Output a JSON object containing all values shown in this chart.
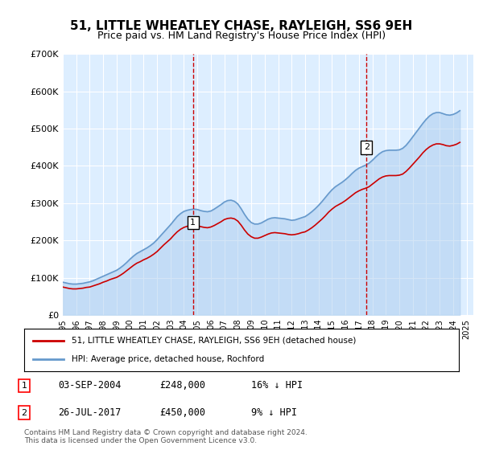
{
  "title": "51, LITTLE WHEATLEY CHASE, RAYLEIGH, SS6 9EH",
  "subtitle": "Price paid vs. HM Land Registry's House Price Index (HPI)",
  "title_fontsize": 11,
  "subtitle_fontsize": 9,
  "background_color": "#ffffff",
  "plot_bg_color": "#ddeeff",
  "grid_color": "#ffffff",
  "hpi_color": "#6699cc",
  "hpi_fill_color": "#aaccee",
  "price_color": "#cc0000",
  "ylim": [
    0,
    700000
  ],
  "yticks": [
    0,
    100000,
    200000,
    300000,
    400000,
    500000,
    600000,
    700000
  ],
  "ytick_labels": [
    "£0",
    "£100K",
    "£200K",
    "£300K",
    "£400K",
    "£500K",
    "£600K",
    "£700K"
  ],
  "xlim_start": 1995.0,
  "xlim_end": 2025.5,
  "xtick_years": [
    1995,
    1996,
    1997,
    1998,
    1999,
    2000,
    2001,
    2002,
    2003,
    2004,
    2005,
    2006,
    2007,
    2008,
    2009,
    2010,
    2011,
    2012,
    2013,
    2014,
    2015,
    2016,
    2017,
    2018,
    2019,
    2020,
    2021,
    2022,
    2023,
    2024,
    2025
  ],
  "sale1_x": 2004.67,
  "sale1_y": 248000,
  "sale1_label": "1",
  "sale2_x": 2017.56,
  "sale2_y": 450000,
  "sale2_label": "2",
  "legend_line1": "51, LITTLE WHEATLEY CHASE, RAYLEIGH, SS6 9EH (detached house)",
  "legend_line2": "HPI: Average price, detached house, Rochford",
  "table_rows": [
    {
      "num": "1",
      "date": "03-SEP-2004",
      "price": "£248,000",
      "hpi": "16% ↓ HPI"
    },
    {
      "num": "2",
      "date": "26-JUL-2017",
      "price": "£450,000",
      "hpi": "9% ↓ HPI"
    }
  ],
  "footnote": "Contains HM Land Registry data © Crown copyright and database right 2024.\nThis data is licensed under the Open Government Licence v3.0.",
  "hpi_years": [
    1995.0,
    1995.25,
    1995.5,
    1995.75,
    1996.0,
    1996.25,
    1996.5,
    1996.75,
    1997.0,
    1997.25,
    1997.5,
    1997.75,
    1998.0,
    1998.25,
    1998.5,
    1998.75,
    1999.0,
    1999.25,
    1999.5,
    1999.75,
    2000.0,
    2000.25,
    2000.5,
    2000.75,
    2001.0,
    2001.25,
    2001.5,
    2001.75,
    2002.0,
    2002.25,
    2002.5,
    2002.75,
    2003.0,
    2003.25,
    2003.5,
    2003.75,
    2004.0,
    2004.25,
    2004.5,
    2004.75,
    2005.0,
    2005.25,
    2005.5,
    2005.75,
    2006.0,
    2006.25,
    2006.5,
    2006.75,
    2007.0,
    2007.25,
    2007.5,
    2007.75,
    2008.0,
    2008.25,
    2008.5,
    2008.75,
    2009.0,
    2009.25,
    2009.5,
    2009.75,
    2010.0,
    2010.25,
    2010.5,
    2010.75,
    2011.0,
    2011.25,
    2011.5,
    2011.75,
    2012.0,
    2012.25,
    2012.5,
    2012.75,
    2013.0,
    2013.25,
    2013.5,
    2013.75,
    2014.0,
    2014.25,
    2014.5,
    2014.75,
    2015.0,
    2015.25,
    2015.5,
    2015.75,
    2016.0,
    2016.25,
    2016.5,
    2016.75,
    2017.0,
    2017.25,
    2017.5,
    2017.75,
    2018.0,
    2018.25,
    2018.5,
    2018.75,
    2019.0,
    2019.25,
    2019.5,
    2019.75,
    2020.0,
    2020.25,
    2020.5,
    2020.75,
    2021.0,
    2021.25,
    2021.5,
    2021.75,
    2022.0,
    2022.25,
    2022.5,
    2022.75,
    2023.0,
    2023.25,
    2023.5,
    2023.75,
    2024.0,
    2024.25,
    2024.5
  ],
  "hpi_values": [
    88000,
    86000,
    84000,
    83000,
    83000,
    84000,
    85000,
    87000,
    89000,
    92000,
    96000,
    100000,
    104000,
    108000,
    112000,
    116000,
    120000,
    126000,
    133000,
    141000,
    150000,
    158000,
    165000,
    170000,
    175000,
    180000,
    186000,
    193000,
    202000,
    212000,
    222000,
    232000,
    242000,
    253000,
    264000,
    272000,
    278000,
    281000,
    283000,
    284000,
    283000,
    280000,
    278000,
    277000,
    279000,
    284000,
    290000,
    296000,
    303000,
    307000,
    308000,
    305000,
    298000,
    285000,
    270000,
    257000,
    248000,
    244000,
    244000,
    247000,
    252000,
    257000,
    260000,
    261000,
    260000,
    259000,
    258000,
    256000,
    254000,
    255000,
    258000,
    261000,
    264000,
    270000,
    277000,
    285000,
    294000,
    304000,
    315000,
    326000,
    336000,
    344000,
    350000,
    356000,
    363000,
    371000,
    380000,
    388000,
    394000,
    398000,
    402000,
    407000,
    415000,
    424000,
    432000,
    438000,
    441000,
    442000,
    442000,
    442000,
    443000,
    447000,
    455000,
    466000,
    478000,
    490000,
    502000,
    514000,
    525000,
    534000,
    540000,
    543000,
    543000,
    540000,
    537000,
    536000,
    538000,
    542000,
    548000
  ],
  "price_years": [
    1995.0,
    1995.25,
    1995.5,
    1995.75,
    1996.0,
    1996.25,
    1996.5,
    1996.75,
    1997.0,
    1997.25,
    1997.5,
    1997.75,
    1998.0,
    1998.25,
    1998.5,
    1998.75,
    1999.0,
    1999.25,
    1999.5,
    1999.75,
    2000.0,
    2000.25,
    2000.5,
    2000.75,
    2001.0,
    2001.25,
    2001.5,
    2001.75,
    2002.0,
    2002.25,
    2002.5,
    2002.75,
    2003.0,
    2003.25,
    2003.5,
    2003.75,
    2004.0,
    2004.25,
    2004.5,
    2004.75,
    2005.0,
    2005.25,
    2005.5,
    2005.75,
    2006.0,
    2006.25,
    2006.5,
    2006.75,
    2007.0,
    2007.25,
    2007.5,
    2007.75,
    2008.0,
    2008.25,
    2008.5,
    2008.75,
    2009.0,
    2009.25,
    2009.5,
    2009.75,
    2010.0,
    2010.25,
    2010.5,
    2010.75,
    2011.0,
    2011.25,
    2011.5,
    2011.75,
    2012.0,
    2012.25,
    2012.5,
    2012.75,
    2013.0,
    2013.25,
    2013.5,
    2013.75,
    2014.0,
    2014.25,
    2014.5,
    2014.75,
    2015.0,
    2015.25,
    2015.5,
    2015.75,
    2016.0,
    2016.25,
    2016.5,
    2016.75,
    2017.0,
    2017.25,
    2017.5,
    2017.75,
    2018.0,
    2018.25,
    2018.5,
    2018.75,
    2019.0,
    2019.25,
    2019.5,
    2019.75,
    2020.0,
    2020.25,
    2020.5,
    2020.75,
    2021.0,
    2021.25,
    2021.5,
    2021.75,
    2022.0,
    2022.25,
    2022.5,
    2022.75,
    2023.0,
    2023.25,
    2023.5,
    2023.75,
    2024.0,
    2024.25,
    2024.5
  ],
  "price_values": [
    75000,
    73000,
    71000,
    70000,
    70000,
    71000,
    72000,
    74000,
    75000,
    78000,
    81000,
    84000,
    88000,
    91000,
    95000,
    98000,
    101000,
    106000,
    112000,
    119000,
    126000,
    133000,
    139000,
    143000,
    148000,
    152000,
    157000,
    163000,
    170000,
    179000,
    188000,
    196000,
    204000,
    214000,
    223000,
    230000,
    235000,
    238000,
    239000,
    240000,
    239000,
    237000,
    235000,
    234000,
    236000,
    240000,
    245000,
    250000,
    256000,
    259000,
    260000,
    258000,
    252000,
    241000,
    228000,
    217000,
    210000,
    206000,
    206000,
    209000,
    213000,
    217000,
    220000,
    221000,
    220000,
    219000,
    218000,
    216000,
    215000,
    216000,
    218000,
    221000,
    223000,
    228000,
    234000,
    241000,
    249000,
    257000,
    266000,
    276000,
    284000,
    291000,
    296000,
    301000,
    307000,
    314000,
    321000,
    328000,
    333000,
    337000,
    340000,
    344000,
    351000,
    358000,
    365000,
    370000,
    373000,
    374000,
    374000,
    374000,
    375000,
    378000,
    385000,
    394000,
    404000,
    414000,
    424000,
    435000,
    444000,
    451000,
    456000,
    459000,
    459000,
    457000,
    454000,
    453000,
    455000,
    458000,
    463000
  ]
}
